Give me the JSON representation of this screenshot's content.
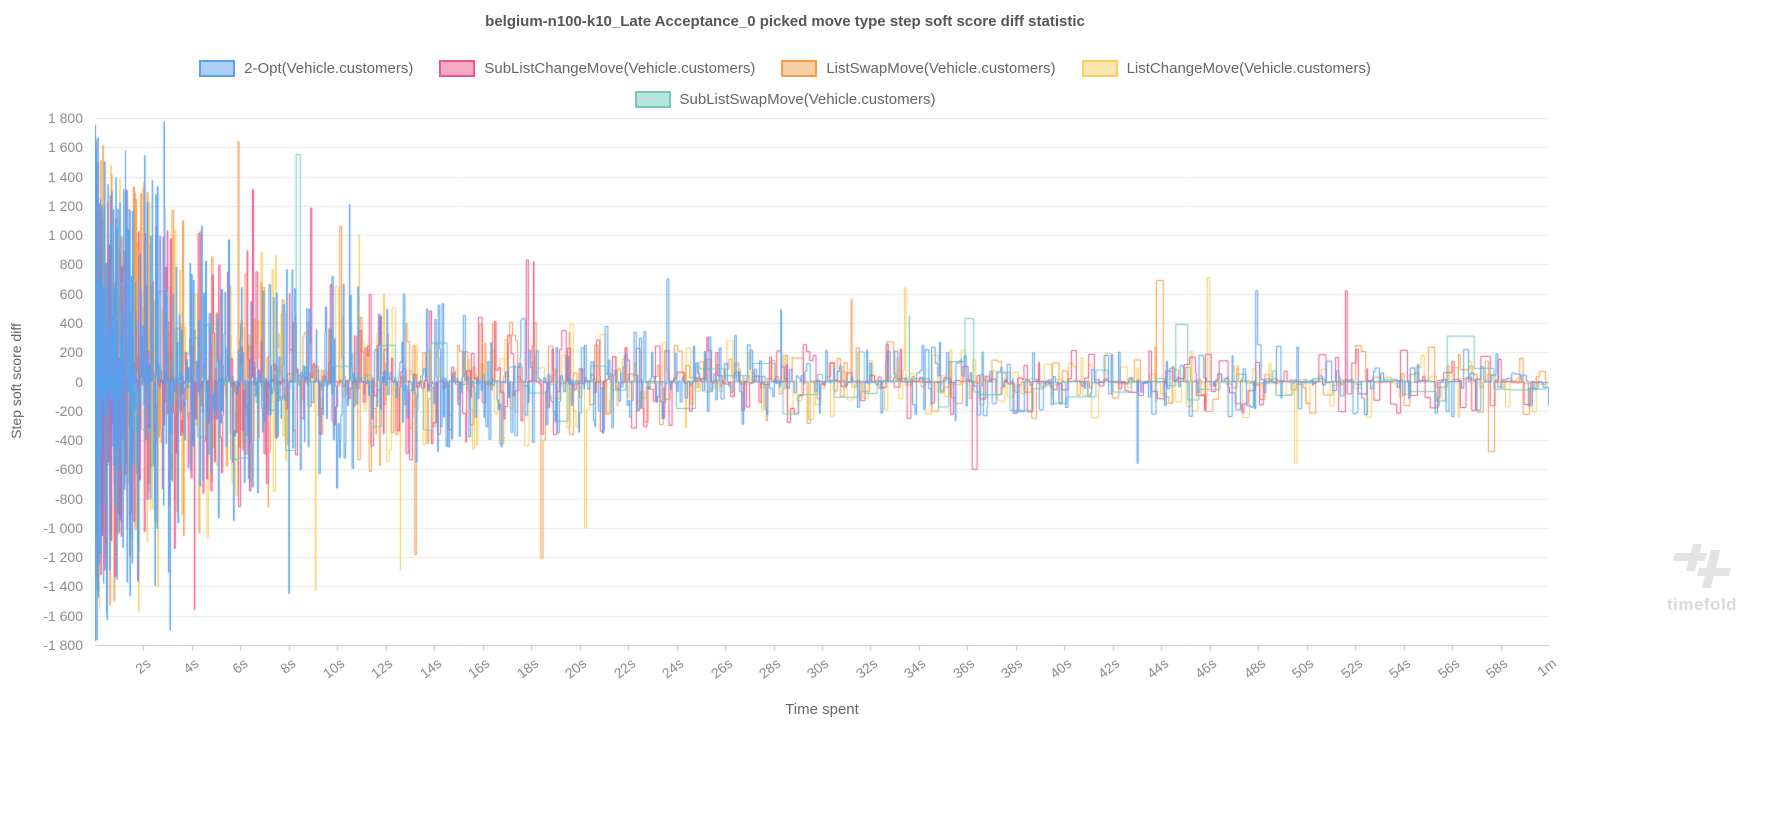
{
  "title": "belgium-n100-k10_Late Acceptance_0 picked move type step soft score diff statistic",
  "watermark": {
    "text": "timefold"
  },
  "legend": {
    "rows": [
      [
        0,
        1,
        2,
        3
      ],
      [
        4
      ]
    ]
  },
  "chart_data": {
    "type": "line",
    "step_interpolation": true,
    "title": "belgium-n100-k10_Late Acceptance_0 picked move type step soft score diff statistic",
    "xlabel": "Time spent",
    "ylabel": "Step soft score diff",
    "xlim_seconds": [
      0,
      60
    ],
    "ylim": [
      -1800,
      1800
    ],
    "grid": "horizontal",
    "legend_position": "top",
    "y_ticks": [
      {
        "value": 1800,
        "label": "1 800"
      },
      {
        "value": 1600,
        "label": "1 600"
      },
      {
        "value": 1400,
        "label": "1 400"
      },
      {
        "value": 1200,
        "label": "1 200"
      },
      {
        "value": 1000,
        "label": "1 000"
      },
      {
        "value": 800,
        "label": "800"
      },
      {
        "value": 600,
        "label": "600"
      },
      {
        "value": 400,
        "label": "400"
      },
      {
        "value": 200,
        "label": "200"
      },
      {
        "value": 0,
        "label": "0"
      },
      {
        "value": -200,
        "label": "-200"
      },
      {
        "value": -400,
        "label": "-400"
      },
      {
        "value": -600,
        "label": "-600"
      },
      {
        "value": -800,
        "label": "-800"
      },
      {
        "value": -1000,
        "label": "-1 000"
      },
      {
        "value": -1200,
        "label": "-1 200"
      },
      {
        "value": -1400,
        "label": "-1 400"
      },
      {
        "value": -1600,
        "label": "-1 600"
      },
      {
        "value": -1800,
        "label": "-1 800"
      }
    ],
    "x_ticks": [
      {
        "seconds": 2,
        "label": "2s"
      },
      {
        "seconds": 4,
        "label": "4s"
      },
      {
        "seconds": 6,
        "label": "6s"
      },
      {
        "seconds": 8,
        "label": "8s"
      },
      {
        "seconds": 10,
        "label": "10s"
      },
      {
        "seconds": 12,
        "label": "12s"
      },
      {
        "seconds": 14,
        "label": "14s"
      },
      {
        "seconds": 16,
        "label": "16s"
      },
      {
        "seconds": 18,
        "label": "18s"
      },
      {
        "seconds": 20,
        "label": "20s"
      },
      {
        "seconds": 22,
        "label": "22s"
      },
      {
        "seconds": 24,
        "label": "24s"
      },
      {
        "seconds": 26,
        "label": "26s"
      },
      {
        "seconds": 28,
        "label": "28s"
      },
      {
        "seconds": 30,
        "label": "30s"
      },
      {
        "seconds": 32,
        "label": "32s"
      },
      {
        "seconds": 34,
        "label": "34s"
      },
      {
        "seconds": 36,
        "label": "36s"
      },
      {
        "seconds": 38,
        "label": "38s"
      },
      {
        "seconds": 40,
        "label": "40s"
      },
      {
        "seconds": 42,
        "label": "42s"
      },
      {
        "seconds": 44,
        "label": "44s"
      },
      {
        "seconds": 46,
        "label": "46s"
      },
      {
        "seconds": 48,
        "label": "48s"
      },
      {
        "seconds": 50,
        "label": "50s"
      },
      {
        "seconds": 52,
        "label": "52s"
      },
      {
        "seconds": 54,
        "label": "54s"
      },
      {
        "seconds": 56,
        "label": "56s"
      },
      {
        "seconds": 58,
        "label": "58s"
      },
      {
        "seconds": 60,
        "label": "1m"
      }
    ],
    "draw_order": [
      3,
      2,
      1,
      4,
      0
    ],
    "series": [
      {
        "label": "2-Opt(Vehicle.customers)",
        "color": "#58a1ef",
        "fill": "rgba(88,161,239,0.5)",
        "seed": 7,
        "points": 1300,
        "density_pow": 2.8,
        "envelope": {
          "base": 250,
          "span": 1560,
          "tau": 8.5
        },
        "spikes": [
          [
            1.3,
            1300
          ],
          [
            2.05,
            1545
          ],
          [
            2.85,
            1775
          ],
          [
            3.1,
            -1700
          ],
          [
            8.0,
            -1450
          ],
          [
            10.5,
            1210
          ],
          [
            23.6,
            700
          ],
          [
            28.3,
            490
          ],
          [
            43.0,
            -560
          ],
          [
            47.9,
            620
          ]
        ]
      },
      {
        "label": "SubListChangeMove(Vehicle.customers)",
        "color": "#f0558a",
        "fill": "rgba(240,85,138,0.5)",
        "seed": 13,
        "points": 700,
        "density_pow": 2.6,
        "envelope": {
          "base": 235,
          "span": 1400,
          "tau": 8.5
        },
        "spikes": [
          [
            4.1,
            -1560
          ],
          [
            6.5,
            1310
          ],
          [
            8.9,
            1185
          ],
          [
            17.8,
            830
          ],
          [
            18.1,
            820
          ],
          [
            36.2,
            -600
          ],
          [
            51.6,
            620
          ]
        ]
      },
      {
        "label": "ListSwapMove(Vehicle.customers)",
        "color": "#f29e4c",
        "fill": "rgba(242,158,76,0.5)",
        "seed": 29,
        "points": 700,
        "density_pow": 2.6,
        "envelope": {
          "base": 245,
          "span": 1430,
          "tau": 8.5
        },
        "spikes": [
          [
            0.35,
            1210
          ],
          [
            5.9,
            1640
          ],
          [
            10.1,
            1060
          ],
          [
            13.2,
            -1185
          ],
          [
            18.4,
            -1205
          ],
          [
            31.2,
            560
          ],
          [
            43.8,
            690
          ],
          [
            57.5,
            -480
          ]
        ]
      },
      {
        "label": "ListChangeMove(Vehicle.customers)",
        "color": "#f6cf5d",
        "fill": "rgba(246,207,93,0.5)",
        "seed": 41,
        "points": 700,
        "density_pow": 2.6,
        "envelope": {
          "base": 245,
          "span": 1420,
          "tau": 9
        },
        "spikes": [
          [
            1.8,
            -1575
          ],
          [
            2.6,
            -1405
          ],
          [
            9.1,
            -1425
          ],
          [
            10.9,
            1005
          ],
          [
            12.6,
            -1290
          ],
          [
            20.2,
            -1000
          ],
          [
            33.4,
            640
          ],
          [
            45.9,
            710
          ],
          [
            49.5,
            -560
          ]
        ]
      },
      {
        "label": "SubListSwapMove(Vehicle.customers)",
        "color": "#70cbbd",
        "fill": "rgba(112,203,189,0.5)",
        "seed": 53,
        "points": 130,
        "density_pow": 1.6,
        "envelope": {
          "base": 190,
          "span": 850,
          "tau": 9
        },
        "spikes": [
          [
            8.3,
            1550
          ],
          [
            33.6,
            450
          ],
          [
            35.9,
            430
          ],
          [
            44.6,
            390
          ],
          [
            55.8,
            310
          ]
        ]
      }
    ]
  }
}
